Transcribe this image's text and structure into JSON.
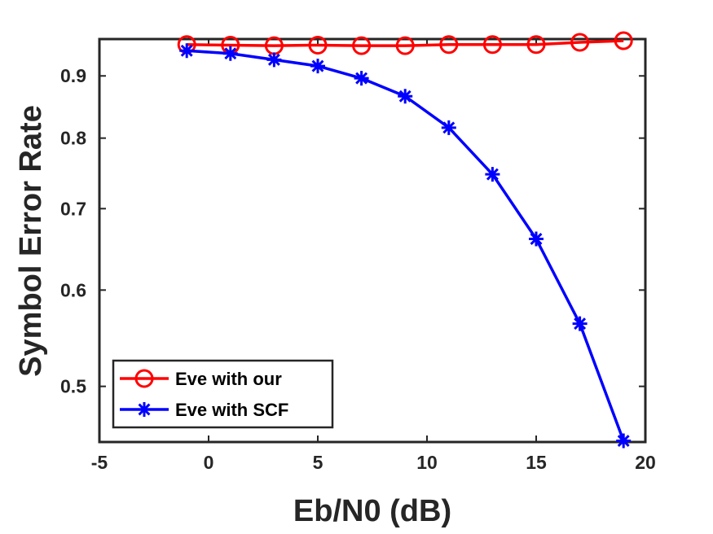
{
  "chart_data": {
    "type": "line",
    "xlabel": "Eb/N0 (dB)",
    "ylabel": "Symbol Error Rate",
    "xlim": [
      -5,
      20
    ],
    "ylim": [
      0.45,
      0.965
    ],
    "y_scale": "log",
    "grid": false,
    "legend_position": "bottom-left",
    "x_ticks": [
      -5,
      0,
      5,
      10,
      15,
      20
    ],
    "x_tick_labels": [
      "-5",
      "0",
      "5",
      "10",
      "15",
      "20"
    ],
    "y_ticks": [
      0.5,
      0.6,
      0.7,
      0.8,
      0.9
    ],
    "y_tick_labels": [
      "0.5",
      "0.6",
      "0.7",
      "0.8",
      "0.9"
    ],
    "x": [
      -1,
      1,
      3,
      5,
      7,
      9,
      11,
      13,
      15,
      17,
      19
    ],
    "series": [
      {
        "name": "Eve with our",
        "color": "#ff0000",
        "marker": "circle",
        "values": [
          0.955,
          0.954,
          0.953,
          0.954,
          0.953,
          0.953,
          0.955,
          0.955,
          0.955,
          0.959,
          0.962
        ]
      },
      {
        "name": "Eve with SCF",
        "color": "#0000ff",
        "marker": "asterisk",
        "values": [
          0.944,
          0.939,
          0.928,
          0.917,
          0.896,
          0.866,
          0.816,
          0.747,
          0.661,
          0.563,
          0.451
        ]
      }
    ]
  }
}
